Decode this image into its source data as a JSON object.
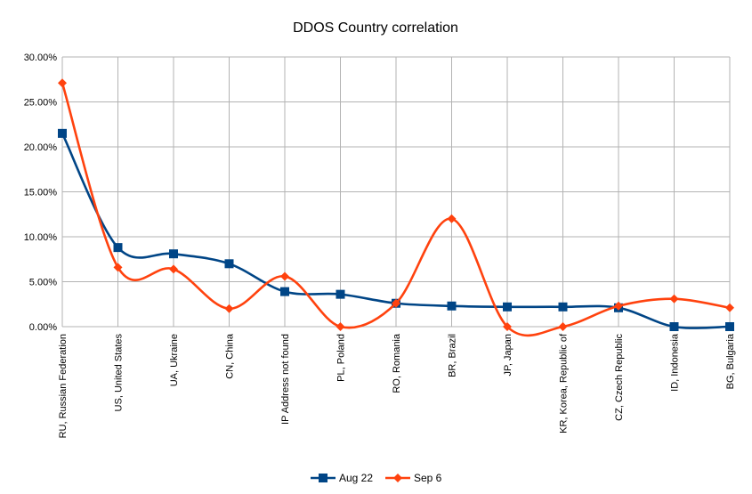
{
  "chart_data": {
    "type": "line",
    "title": "DDOS Country correlation",
    "xlabel": "",
    "ylabel": "",
    "categories": [
      "RU, Russian Federation",
      "US, United States",
      "UA, Ukraine",
      "CN, China",
      "IP Address not found",
      "PL, Poland",
      "RO, Romania",
      "BR, Brazil",
      "JP, Japan",
      "KR, Korea, Republic of",
      "CZ, Czech Republic",
      "ID, Indonesia",
      "BG, Bulgaria"
    ],
    "ylim": [
      0,
      0.3
    ],
    "yticks": [
      0,
      0.05,
      0.1,
      0.15,
      0.2,
      0.25,
      0.3
    ],
    "ytick_labels": [
      "0.00%",
      "5.00%",
      "10.00%",
      "15.00%",
      "20.00%",
      "25.00%",
      "30.00%"
    ],
    "grid": true,
    "legend_position": "bottom",
    "smooth": true,
    "series": [
      {
        "name": "Aug 22",
        "color": "#004586",
        "marker": "square",
        "values": [
          0.215,
          0.088,
          0.081,
          0.07,
          0.039,
          0.036,
          0.026,
          0.023,
          0.022,
          0.022,
          0.021,
          0.0,
          0.0
        ]
      },
      {
        "name": "Sep 6",
        "color": "#ff420e",
        "marker": "diamond",
        "values": [
          0.271,
          0.066,
          0.064,
          0.02,
          0.056,
          0.0,
          0.026,
          0.12,
          0.0,
          0.0,
          0.023,
          0.031,
          0.021
        ]
      }
    ]
  }
}
